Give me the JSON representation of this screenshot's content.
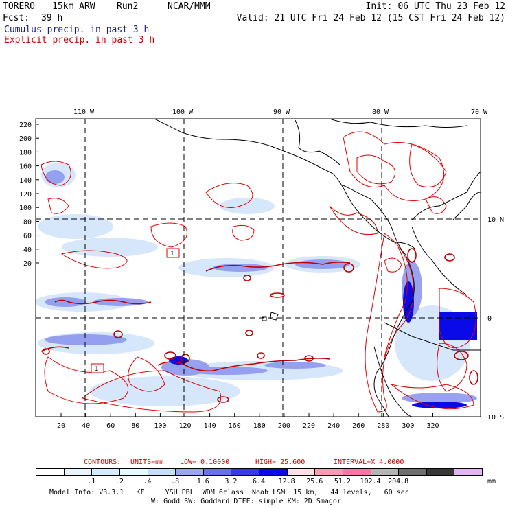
{
  "header": {
    "model": "TORERO",
    "resolution": "15km ARW",
    "run": "Run2",
    "org": "NCAR/MMM",
    "init": "Init: 06 UTC Thu 23 Feb 12",
    "fcst_label": "Fcst:",
    "fcst_value": "39 h",
    "valid": "Valid: 21 UTC Fri 24 Feb 12 (15 CST Fri 24 Feb 12)",
    "field1": "Cumulus precip. in past 3 h",
    "field2": "Explicit precip. in past 3 h",
    "field1_color": "#1a1a8c",
    "field2_color": "#cc0000"
  },
  "map": {
    "lon_labels": [
      "110 W",
      "100 W",
      "90 W",
      "80 W",
      "70 W"
    ],
    "lat_labels": [
      "10 N",
      "0",
      "10 S"
    ],
    "y_ticks": [
      "220",
      "200",
      "180",
      "160",
      "140",
      "120",
      "100",
      "80",
      "60",
      "40",
      "20"
    ],
    "x_ticks": [
      "20",
      "40",
      "60",
      "80",
      "100",
      "120",
      "140",
      "160",
      "180",
      "200",
      "220",
      "240",
      "260",
      "280",
      "300",
      "320"
    ],
    "annotations": [
      "1",
      "1"
    ]
  },
  "contours": {
    "label": "CONTOURS:",
    "units": "UNITS=mm",
    "low": "LOW= 0.10000",
    "high": "HIGH= 25.600",
    "interval": "INTERVAL=X 4.0000"
  },
  "colorbar": {
    "colors": [
      "#ffffff",
      "#e8f4ff",
      "#d4ecff",
      "#e6fbff",
      "#c6def9",
      "#9aa6f0",
      "#6a70ea",
      "#3a3ae8",
      "#0a0ae8",
      "#ffe0e4",
      "#ff9ab4",
      "#ff74a8",
      "#b4b4b4",
      "#6e6e6e",
      "#383838",
      "#e4b4f4"
    ],
    "labels": [
      ".1",
      ".2",
      ".4",
      ".8",
      "1.6",
      "3.2",
      "6.4",
      "12.8",
      "25.6",
      "51.2",
      "102.4",
      "204.8"
    ],
    "unit": "mm"
  },
  "footer": {
    "line1": "Model Info: V3.3.1   KF     YSU PBL  WDM 6class  Noah LSM  15 km,   44 levels,   60 sec",
    "line2": "LW: Godd SW: Goddard DIFF: simple KM: 2D Smagor"
  }
}
